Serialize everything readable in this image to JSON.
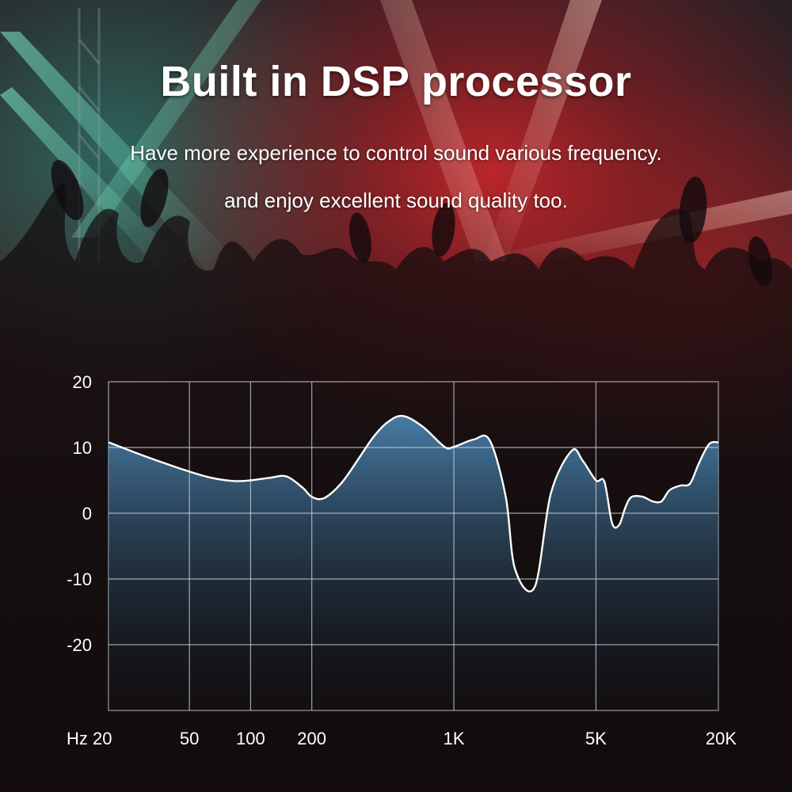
{
  "header": {
    "title": "Built in DSP processor",
    "subtitle_line1": "Have more experience to control sound various frequency.",
    "subtitle_line2": "and enjoy excellent sound quality too."
  },
  "colors": {
    "grid": "#cfd6dc",
    "curve": "#ffffff",
    "fill_top": "#4f8fbf",
    "fill_bottom": "#0e1a24"
  },
  "chart_data": {
    "type": "area",
    "title": "",
    "xlabel": "Hz",
    "ylabel": "",
    "x_scale": "log",
    "xlim": [
      20,
      20000
    ],
    "ylim": [
      -30,
      20
    ],
    "grid": true,
    "x_ticks": [
      {
        "value": 20,
        "label": "Hz 20"
      },
      {
        "value": 50,
        "label": "50"
      },
      {
        "value": 100,
        "label": "100"
      },
      {
        "value": 200,
        "label": "200"
      },
      {
        "value": 1000,
        "label": "1K"
      },
      {
        "value": 5000,
        "label": "5K"
      },
      {
        "value": 20000,
        "label": "20K"
      }
    ],
    "y_ticks": [
      {
        "value": 20,
        "label": "20"
      },
      {
        "value": 10,
        "label": "10"
      },
      {
        "value": 0,
        "label": "0"
      },
      {
        "value": -10,
        "label": "-10"
      },
      {
        "value": -20,
        "label": "-20"
      }
    ],
    "series": [
      {
        "x": [
          20,
          30,
          45,
          62,
          82,
          100,
          125,
          150,
          180,
          200,
          230,
          280,
          340,
          400,
          470,
          560,
          700,
          900,
          1000,
          1250,
          1500,
          1800,
          2000,
          2500,
          3000,
          3800,
          4300,
          5000,
          5500,
          6000,
          6500,
          7000,
          7500,
          8500,
          9500,
          10500,
          11500,
          13000,
          14500,
          16000,
          18000,
          20000
        ],
        "y": [
          10.8,
          8.7,
          6.8,
          5.5,
          4.9,
          5.0,
          5.4,
          5.6,
          3.9,
          2.5,
          2.3,
          4.6,
          8.3,
          11.5,
          13.8,
          14.8,
          13.2,
          10.1,
          10.1,
          11.2,
          11.1,
          2.5,
          -8.5,
          -11.2,
          3.0,
          9.5,
          8.0,
          5.0,
          4.8,
          -1.5,
          -1.8,
          1.0,
          2.5,
          2.5,
          1.8,
          1.8,
          3.5,
          4.2,
          4.5,
          7.5,
          10.5,
          10.8
        ]
      }
    ]
  }
}
